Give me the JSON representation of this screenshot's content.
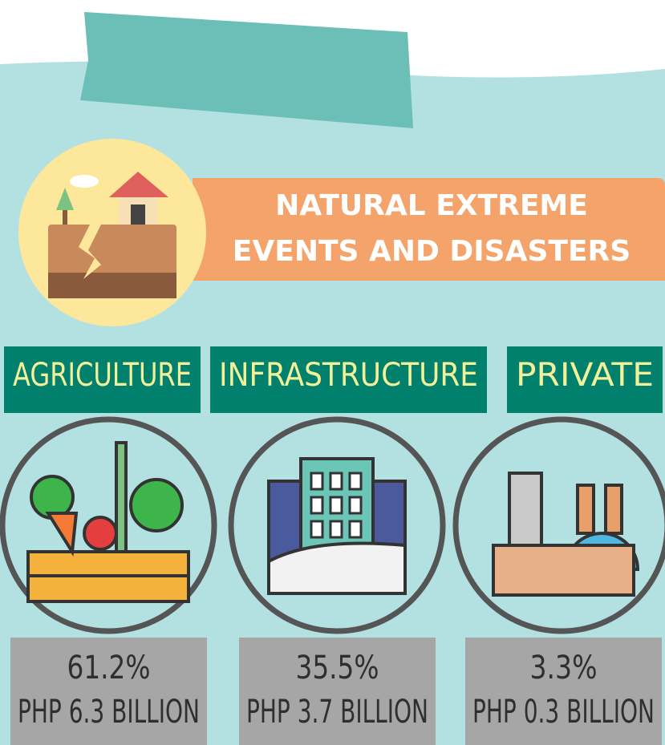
{
  "title_lines": [
    "NATURAL EXTREME",
    "EVENTS AND DISASTERS"
  ],
  "sectors": [
    {
      "name": "AGRICULTURE",
      "share": "61.2%",
      "amount": "PHP 6.3 BILLION"
    },
    {
      "name": "INFRASTRUCTURE",
      "share": "35.5%",
      "amount": "PHP 3.7 BILLION"
    },
    {
      "name": "PRIVATE",
      "share": "3.3%",
      "amount": "PHP 0.3 BILLION"
    }
  ]
}
